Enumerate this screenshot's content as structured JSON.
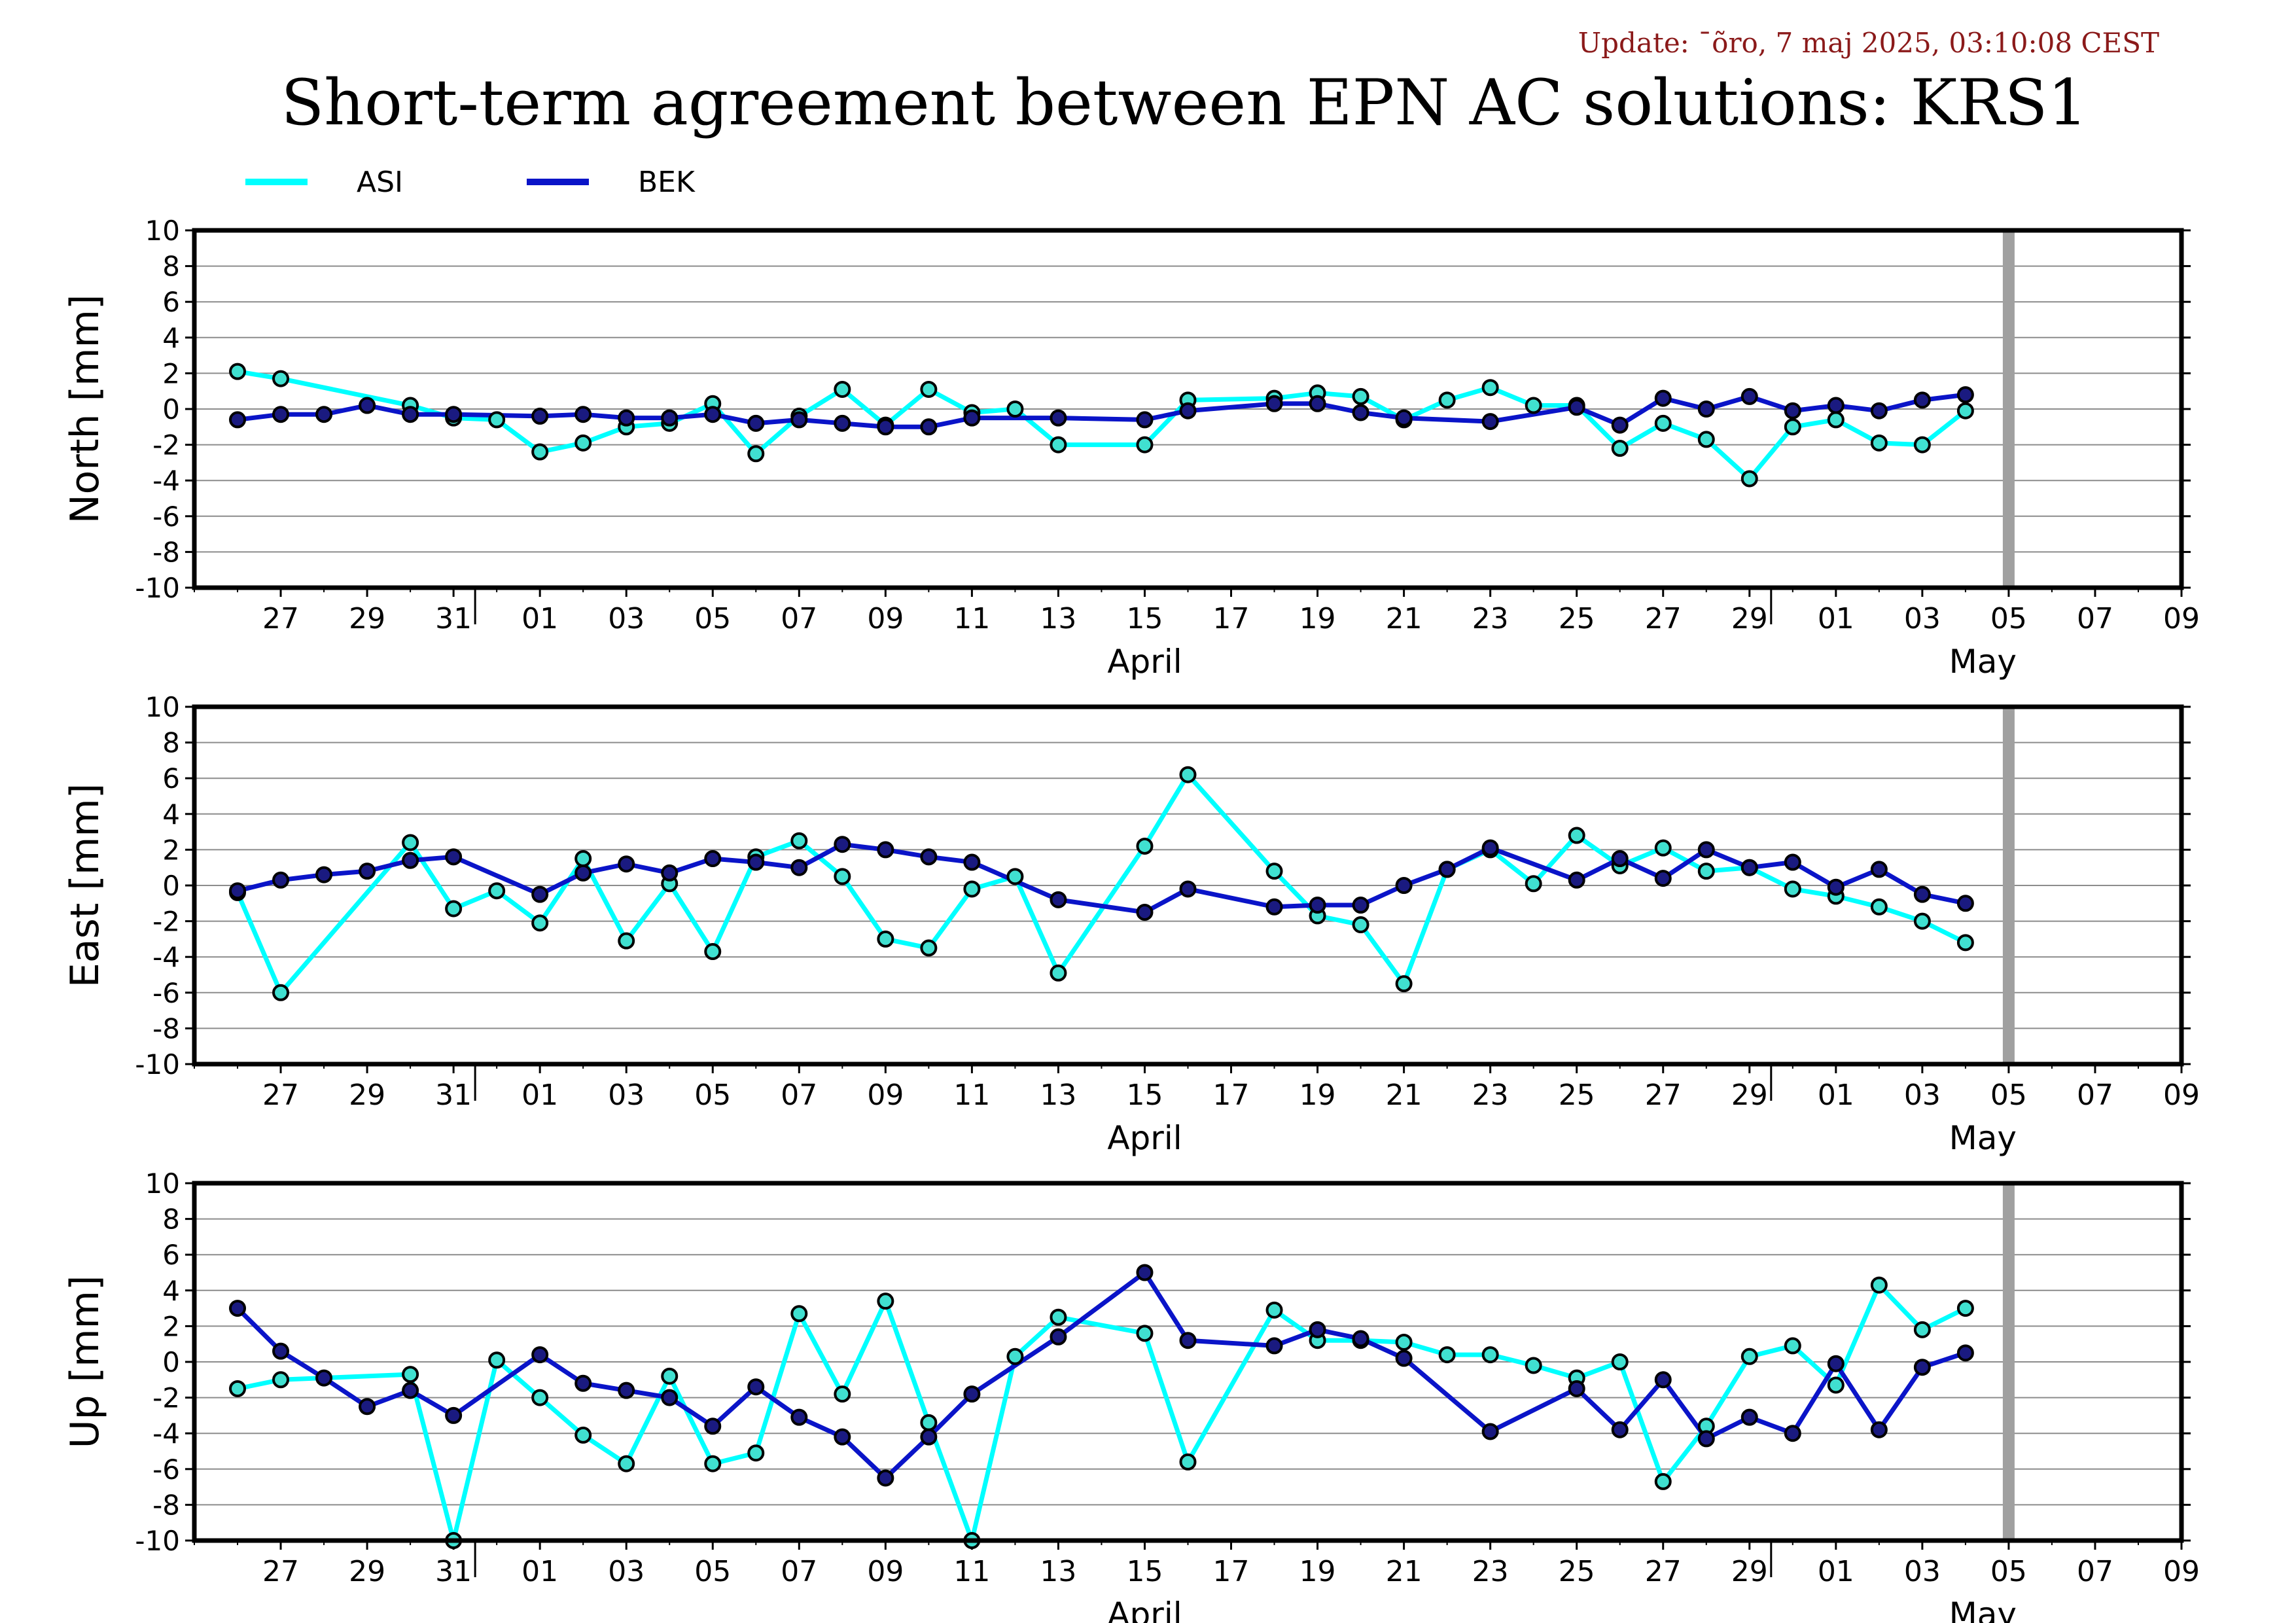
{
  "header": {
    "update": "Update: ¯õro, 7 maj 2025, 03:10:08 CEST",
    "title": "Short-term agreement between EPN AC solutions: KRS1"
  },
  "colors": {
    "ASI": "#00ffff",
    "BEK": "#0a14c8",
    "marker_ASI": "#40e0d0",
    "marker_BEK": "#1a1a80",
    "update_text": "#8b1a1a",
    "today_bar": "#a0a0a0"
  },
  "legend": [
    {
      "name": "ASI"
    },
    {
      "name": "BEK"
    }
  ],
  "chart_data": [
    {
      "type": "line",
      "ylabel": "North [mm]",
      "ylim": [
        -10,
        10
      ],
      "yticks": [
        "10",
        "8",
        "6",
        "4",
        "2",
        "0",
        "-2",
        "-4",
        "-6",
        "-8",
        "-10"
      ],
      "xlim": [
        "2025-03-25",
        "2025-05-10"
      ],
      "today": "2025-05-06",
      "xticks": [
        "27",
        "29",
        "31",
        "01",
        "03",
        "05",
        "07",
        "09",
        "11",
        "13",
        "15",
        "17",
        "19",
        "21",
        "23",
        "25",
        "27",
        "29",
        "01",
        "03",
        "05",
        "07",
        "09"
      ],
      "month_labels": [
        "April",
        "May"
      ],
      "series": [
        {
          "name": "ASI",
          "points": [
            [
              "2025-03-26",
              2.1
            ],
            [
              "2025-03-27",
              1.7
            ],
            [
              "2025-03-30",
              0.2
            ],
            [
              "2025-03-31",
              -0.5
            ],
            [
              "2025-04-01",
              -0.6
            ],
            [
              "2025-04-02",
              -2.4
            ],
            [
              "2025-04-03",
              -1.9
            ],
            [
              "2025-04-04",
              -1.0
            ],
            [
              "2025-04-05",
              -0.8
            ],
            [
              "2025-04-06",
              0.3
            ],
            [
              "2025-04-07",
              -2.5
            ],
            [
              "2025-04-08",
              -0.4
            ],
            [
              "2025-04-09",
              1.1
            ],
            [
              "2025-04-10",
              -0.9
            ],
            [
              "2025-04-11",
              1.1
            ],
            [
              "2025-04-12",
              -0.2
            ],
            [
              "2025-04-13",
              0.0
            ],
            [
              "2025-04-14",
              -2.0
            ],
            [
              "2025-04-16",
              -2.0
            ],
            [
              "2025-04-17",
              0.5
            ],
            [
              "2025-04-19",
              0.6
            ],
            [
              "2025-04-20",
              0.9
            ],
            [
              "2025-04-21",
              0.7
            ],
            [
              "2025-04-22",
              -0.6
            ],
            [
              "2025-04-23",
              0.5
            ],
            [
              "2025-04-24",
              1.2
            ],
            [
              "2025-04-25",
              0.2
            ],
            [
              "2025-04-26",
              0.2
            ],
            [
              "2025-04-27",
              -2.2
            ],
            [
              "2025-04-28",
              -0.8
            ],
            [
              "2025-04-29",
              -1.7
            ],
            [
              "2025-04-30",
              -3.9
            ],
            [
              "2025-05-01",
              -1.0
            ],
            [
              "2025-05-02",
              -0.6
            ],
            [
              "2025-05-03",
              -1.9
            ],
            [
              "2025-05-04",
              -2.0
            ],
            [
              "2025-05-05",
              -0.1
            ]
          ]
        },
        {
          "name": "BEK",
          "points": [
            [
              "2025-03-26",
              -0.6
            ],
            [
              "2025-03-27",
              -0.3
            ],
            [
              "2025-03-28",
              -0.3
            ],
            [
              "2025-03-29",
              0.2
            ],
            [
              "2025-03-30",
              -0.3
            ],
            [
              "2025-03-31",
              -0.3
            ],
            [
              "2025-04-02",
              -0.4
            ],
            [
              "2025-04-03",
              -0.3
            ],
            [
              "2025-04-04",
              -0.5
            ],
            [
              "2025-04-05",
              -0.5
            ],
            [
              "2025-04-06",
              -0.3
            ],
            [
              "2025-04-07",
              -0.8
            ],
            [
              "2025-04-08",
              -0.6
            ],
            [
              "2025-04-09",
              -0.8
            ],
            [
              "2025-04-10",
              -1.0
            ],
            [
              "2025-04-11",
              -1.0
            ],
            [
              "2025-04-12",
              -0.5
            ],
            [
              "2025-04-14",
              -0.5
            ],
            [
              "2025-04-16",
              -0.6
            ],
            [
              "2025-04-17",
              -0.1
            ],
            [
              "2025-04-19",
              0.3
            ],
            [
              "2025-04-20",
              0.3
            ],
            [
              "2025-04-21",
              -0.2
            ],
            [
              "2025-04-22",
              -0.5
            ],
            [
              "2025-04-24",
              -0.7
            ],
            [
              "2025-04-26",
              0.1
            ],
            [
              "2025-04-27",
              -0.9
            ],
            [
              "2025-04-28",
              0.6
            ],
            [
              "2025-04-29",
              0.0
            ],
            [
              "2025-04-30",
              0.7
            ],
            [
              "2025-05-01",
              -0.1
            ],
            [
              "2025-05-02",
              0.2
            ],
            [
              "2025-05-03",
              -0.1
            ],
            [
              "2025-05-04",
              0.5
            ],
            [
              "2025-05-05",
              0.8
            ]
          ]
        }
      ]
    },
    {
      "type": "line",
      "ylabel": "East [mm]",
      "ylim": [
        -10,
        10
      ],
      "yticks": [
        "10",
        "8",
        "6",
        "4",
        "2",
        "0",
        "-2",
        "-4",
        "-6",
        "-8",
        "-10"
      ],
      "xlim": [
        "2025-03-25",
        "2025-05-10"
      ],
      "today": "2025-05-06",
      "xticks": [
        "27",
        "29",
        "31",
        "01",
        "03",
        "05",
        "07",
        "09",
        "11",
        "13",
        "15",
        "17",
        "19",
        "21",
        "23",
        "25",
        "27",
        "29",
        "01",
        "03",
        "05",
        "07",
        "09"
      ],
      "month_labels": [
        "April",
        "May"
      ],
      "series": [
        {
          "name": "ASI",
          "points": [
            [
              "2025-03-26",
              -0.4
            ],
            [
              "2025-03-27",
              -6.0
            ],
            [
              "2025-03-30",
              2.4
            ],
            [
              "2025-03-31",
              -1.3
            ],
            [
              "2025-04-01",
              -0.3
            ],
            [
              "2025-04-02",
              -2.1
            ],
            [
              "2025-04-03",
              1.5
            ],
            [
              "2025-04-04",
              -3.1
            ],
            [
              "2025-04-05",
              0.1
            ],
            [
              "2025-04-06",
              -3.7
            ],
            [
              "2025-04-07",
              1.6
            ],
            [
              "2025-04-08",
              2.5
            ],
            [
              "2025-04-09",
              0.5
            ],
            [
              "2025-04-10",
              -3.0
            ],
            [
              "2025-04-11",
              -3.5
            ],
            [
              "2025-04-12",
              -0.2
            ],
            [
              "2025-04-13",
              0.5
            ],
            [
              "2025-04-14",
              -4.9
            ],
            [
              "2025-04-16",
              2.2
            ],
            [
              "2025-04-17",
              6.2
            ],
            [
              "2025-04-19",
              0.8
            ],
            [
              "2025-04-20",
              -1.7
            ],
            [
              "2025-04-21",
              -2.2
            ],
            [
              "2025-04-22",
              -5.5
            ],
            [
              "2025-04-23",
              0.9
            ],
            [
              "2025-04-24",
              2.0
            ],
            [
              "2025-04-25",
              0.1
            ],
            [
              "2025-04-26",
              2.8
            ],
            [
              "2025-04-27",
              1.1
            ],
            [
              "2025-04-28",
              2.1
            ],
            [
              "2025-04-29",
              0.8
            ],
            [
              "2025-04-30",
              1.0
            ],
            [
              "2025-05-01",
              -0.2
            ],
            [
              "2025-05-02",
              -0.6
            ],
            [
              "2025-05-03",
              -1.2
            ],
            [
              "2025-05-04",
              -2.0
            ],
            [
              "2025-05-05",
              -3.2
            ]
          ]
        },
        {
          "name": "BEK",
          "points": [
            [
              "2025-03-26",
              -0.3
            ],
            [
              "2025-03-27",
              0.3
            ],
            [
              "2025-03-28",
              0.6
            ],
            [
              "2025-03-29",
              0.8
            ],
            [
              "2025-03-30",
              1.4
            ],
            [
              "2025-03-31",
              1.6
            ],
            [
              "2025-04-02",
              -0.5
            ],
            [
              "2025-04-03",
              0.7
            ],
            [
              "2025-04-04",
              1.2
            ],
            [
              "2025-04-05",
              0.7
            ],
            [
              "2025-04-06",
              1.5
            ],
            [
              "2025-04-07",
              1.3
            ],
            [
              "2025-04-08",
              1.0
            ],
            [
              "2025-04-09",
              2.3
            ],
            [
              "2025-04-10",
              2.0
            ],
            [
              "2025-04-11",
              1.6
            ],
            [
              "2025-04-12",
              1.3
            ],
            [
              "2025-04-14",
              -0.8
            ],
            [
              "2025-04-16",
              -1.5
            ],
            [
              "2025-04-17",
              -0.2
            ],
            [
              "2025-04-19",
              -1.2
            ],
            [
              "2025-04-20",
              -1.1
            ],
            [
              "2025-04-21",
              -1.1
            ],
            [
              "2025-04-22",
              0.0
            ],
            [
              "2025-04-23",
              0.9
            ],
            [
              "2025-04-24",
              2.1
            ],
            [
              "2025-04-26",
              0.3
            ],
            [
              "2025-04-27",
              1.5
            ],
            [
              "2025-04-28",
              0.4
            ],
            [
              "2025-04-29",
              2.0
            ],
            [
              "2025-04-30",
              1.0
            ],
            [
              "2025-05-01",
              1.3
            ],
            [
              "2025-05-02",
              -0.1
            ],
            [
              "2025-05-03",
              0.9
            ],
            [
              "2025-05-04",
              -0.5
            ],
            [
              "2025-05-05",
              -1.0
            ]
          ]
        }
      ]
    },
    {
      "type": "line",
      "ylabel": "Up [mm]",
      "ylim": [
        -10,
        10
      ],
      "yticks": [
        "10",
        "8",
        "6",
        "4",
        "2",
        "0",
        "-2",
        "-4",
        "-6",
        "-8",
        "-10"
      ],
      "xlim": [
        "2025-03-25",
        "2025-05-10"
      ],
      "today": "2025-05-06",
      "xticks": [
        "27",
        "29",
        "31",
        "01",
        "03",
        "05",
        "07",
        "09",
        "11",
        "13",
        "15",
        "17",
        "19",
        "21",
        "23",
        "25",
        "27",
        "29",
        "01",
        "03",
        "05",
        "07",
        "09"
      ],
      "month_labels": [
        "April",
        "May"
      ],
      "series": [
        {
          "name": "ASI",
          "points": [
            [
              "2025-03-26",
              -1.5
            ],
            [
              "2025-03-27",
              -1.0
            ],
            [
              "2025-03-30",
              -0.7
            ],
            [
              "2025-03-31",
              -10.0
            ],
            [
              "2025-04-01",
              0.1
            ],
            [
              "2025-04-02",
              -2.0
            ],
            [
              "2025-04-03",
              -4.1
            ],
            [
              "2025-04-04",
              -5.7
            ],
            [
              "2025-04-05",
              -0.8
            ],
            [
              "2025-04-06",
              -5.7
            ],
            [
              "2025-04-07",
              -5.1
            ],
            [
              "2025-04-08",
              2.7
            ],
            [
              "2025-04-09",
              -1.8
            ],
            [
              "2025-04-10",
              3.4
            ],
            [
              "2025-04-11",
              -3.4
            ],
            [
              "2025-04-12",
              -10.0
            ],
            [
              "2025-04-13",
              0.3
            ],
            [
              "2025-04-14",
              2.5
            ],
            [
              "2025-04-16",
              1.6
            ],
            [
              "2025-04-17",
              -5.6
            ],
            [
              "2025-04-19",
              2.9
            ],
            [
              "2025-04-20",
              1.2
            ],
            [
              "2025-04-21",
              1.2
            ],
            [
              "2025-04-22",
              1.1
            ],
            [
              "2025-04-23",
              0.4
            ],
            [
              "2025-04-24",
              0.4
            ],
            [
              "2025-04-25",
              -0.2
            ],
            [
              "2025-04-26",
              -0.9
            ],
            [
              "2025-04-27",
              0.0
            ],
            [
              "2025-04-28",
              -6.7
            ],
            [
              "2025-04-29",
              -3.6
            ],
            [
              "2025-04-30",
              0.3
            ],
            [
              "2025-05-01",
              0.9
            ],
            [
              "2025-05-02",
              -1.3
            ],
            [
              "2025-05-03",
              4.3
            ],
            [
              "2025-05-04",
              1.8
            ],
            [
              "2025-05-05",
              3.0
            ]
          ]
        },
        {
          "name": "BEK",
          "points": [
            [
              "2025-03-26",
              3.0
            ],
            [
              "2025-03-27",
              0.6
            ],
            [
              "2025-03-28",
              -0.9
            ],
            [
              "2025-03-29",
              -2.5
            ],
            [
              "2025-03-30",
              -1.6
            ],
            [
              "2025-03-31",
              -3.0
            ],
            [
              "2025-04-02",
              0.4
            ],
            [
              "2025-04-03",
              -1.2
            ],
            [
              "2025-04-04",
              -1.6
            ],
            [
              "2025-04-05",
              -2.0
            ],
            [
              "2025-04-06",
              -3.6
            ],
            [
              "2025-04-07",
              -1.4
            ],
            [
              "2025-04-08",
              -3.1
            ],
            [
              "2025-04-09",
              -4.2
            ],
            [
              "2025-04-10",
              -6.5
            ],
            [
              "2025-04-11",
              -4.2
            ],
            [
              "2025-04-12",
              -1.8
            ],
            [
              "2025-04-14",
              1.4
            ],
            [
              "2025-04-16",
              5.0
            ],
            [
              "2025-04-17",
              1.2
            ],
            [
              "2025-04-19",
              0.9
            ],
            [
              "2025-04-20",
              1.8
            ],
            [
              "2025-04-21",
              1.3
            ],
            [
              "2025-04-22",
              0.2
            ],
            [
              "2025-04-24",
              -3.9
            ],
            [
              "2025-04-26",
              -1.5
            ],
            [
              "2025-04-27",
              -3.8
            ],
            [
              "2025-04-28",
              -1.0
            ],
            [
              "2025-04-29",
              -4.3
            ],
            [
              "2025-04-30",
              -3.1
            ],
            [
              "2025-05-01",
              -4.0
            ],
            [
              "2025-05-02",
              -0.1
            ],
            [
              "2025-05-03",
              -3.8
            ],
            [
              "2025-05-04",
              -0.3
            ],
            [
              "2025-05-05",
              0.5
            ]
          ]
        }
      ]
    }
  ]
}
